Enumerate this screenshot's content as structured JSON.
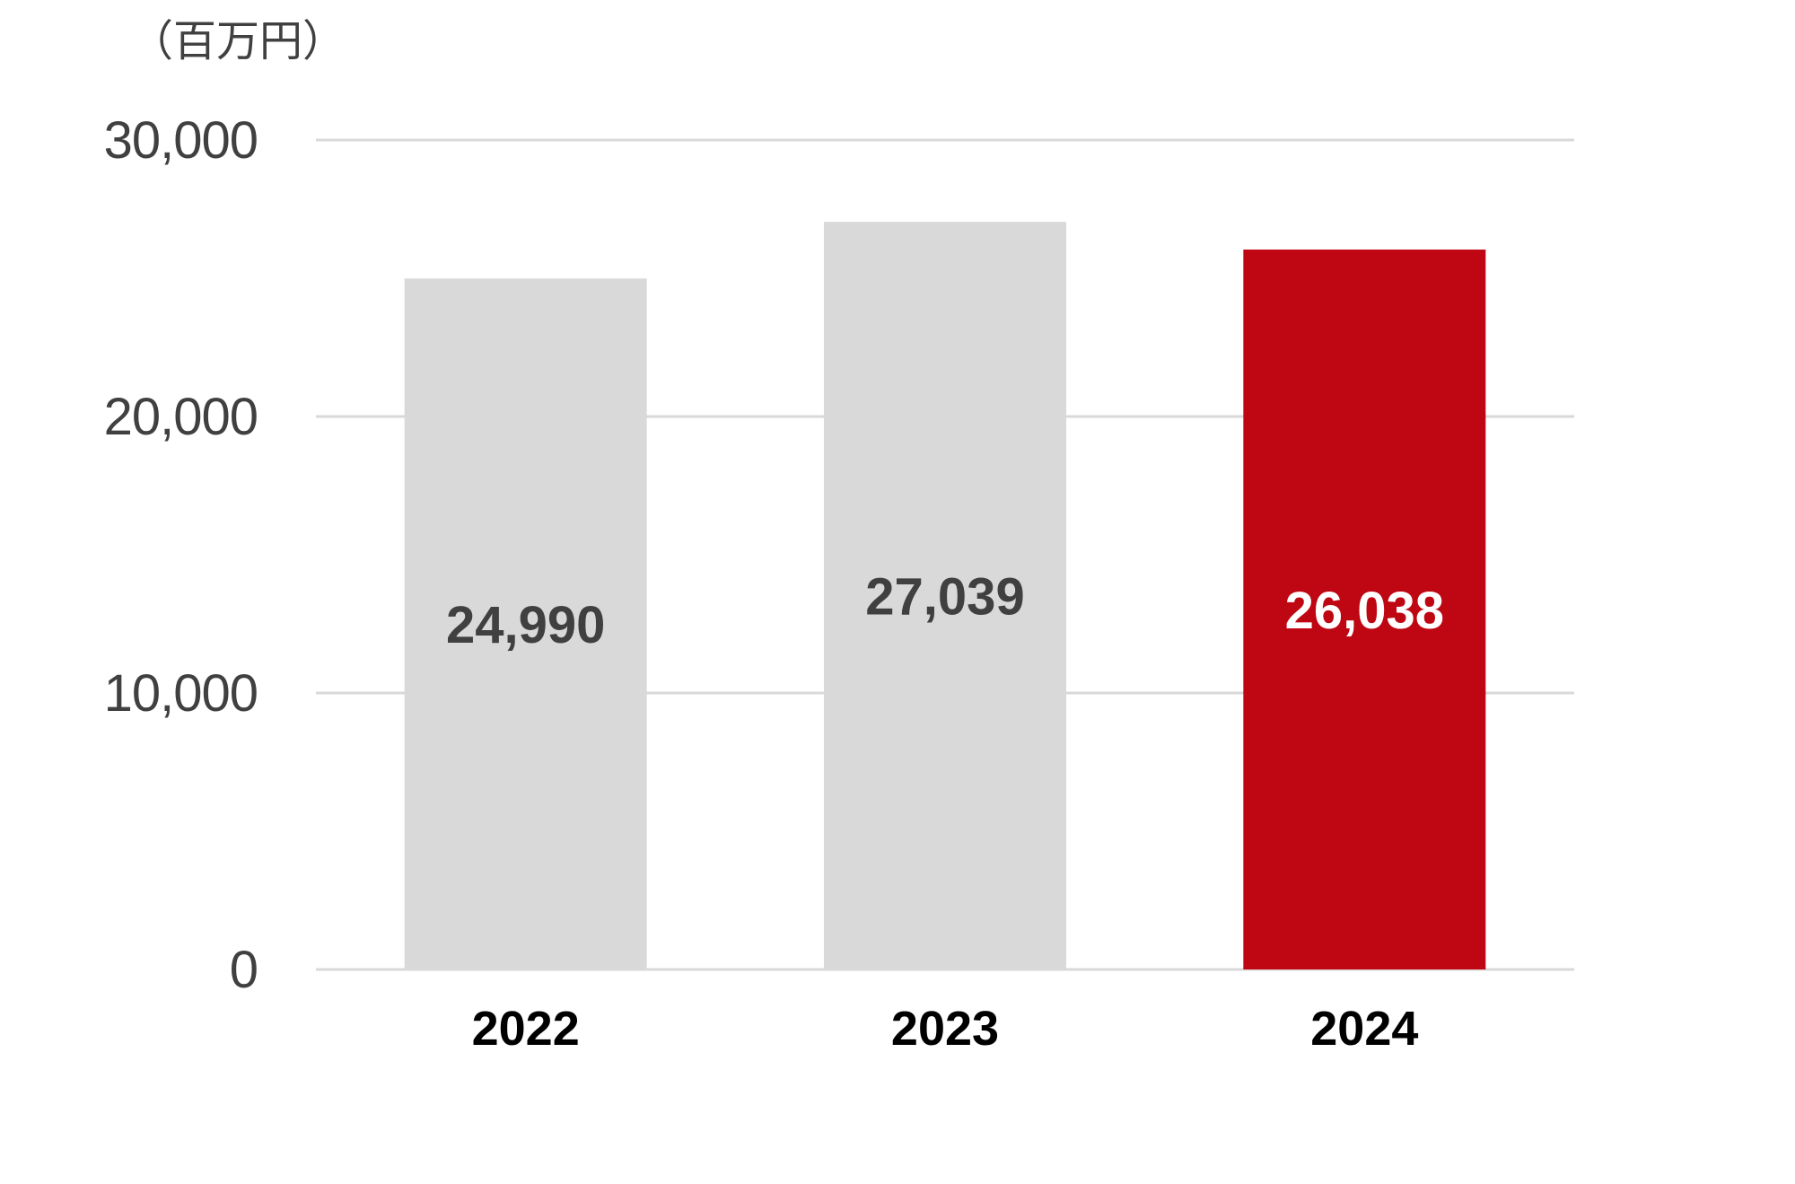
{
  "chart_data": {
    "type": "bar",
    "unit_label": "（百万円）",
    "categories": [
      "2022",
      "2023",
      "2024"
    ],
    "values": [
      24990,
      27039,
      26038
    ],
    "value_labels": [
      "24,990",
      "27,039",
      "26,038"
    ],
    "y_ticks": [
      0,
      10000,
      20000,
      30000
    ],
    "y_tick_labels": [
      "0",
      "10,000",
      "20,000",
      "30,000"
    ],
    "ylim": [
      0,
      30000
    ],
    "grid": true,
    "legend": "none",
    "bar_colors": [
      "#d9d9d9",
      "#d9d9d9",
      "#be0712"
    ],
    "value_label_colors": [
      "#404040",
      "#404040",
      "#ffffff"
    ],
    "gridline_color": "#d9d9d9"
  }
}
